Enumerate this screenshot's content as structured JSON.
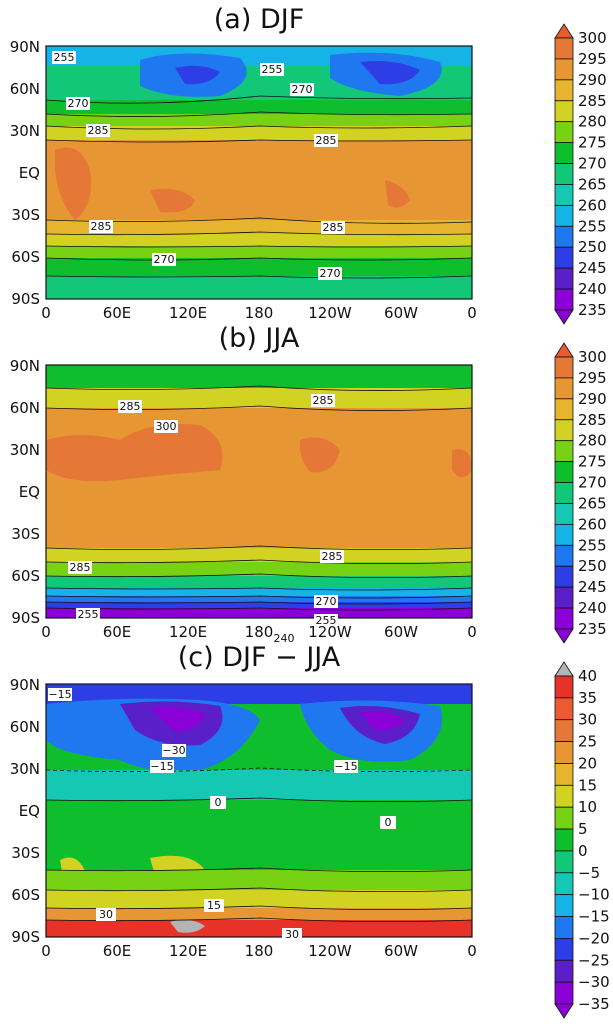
{
  "panels": [
    {
      "title": "(a) DJF",
      "lat_labels": [
        "90N",
        "60N",
        "30N",
        "EQ",
        "30S",
        "60S",
        "90S"
      ],
      "lon_labels": [
        "0",
        "60E",
        "120E",
        "180",
        "120W",
        "60W",
        "0"
      ],
      "colorbar_ticks": [
        "300",
        "295",
        "290",
        "285",
        "280",
        "275",
        "270",
        "265",
        "260",
        "255",
        "250",
        "245",
        "240",
        "235"
      ],
      "contour_labels": [
        "255",
        "270",
        "285",
        "255",
        "270",
        "285",
        "285",
        "285",
        "270",
        "270"
      ]
    },
    {
      "title": "(b) JJA",
      "lat_labels": [
        "90N",
        "60N",
        "30N",
        "EQ",
        "30S",
        "60S",
        "90S"
      ],
      "lon_labels": [
        "0",
        "60E",
        "120E",
        "180",
        "120W",
        "60W",
        "0"
      ],
      "colorbar_ticks": [
        "300",
        "295",
        "290",
        "285",
        "280",
        "275",
        "270",
        "265",
        "260",
        "255",
        "250",
        "245",
        "240",
        "235"
      ],
      "contour_labels": [
        "285",
        "300",
        "285",
        "285",
        "285",
        "270",
        "255",
        "255",
        "240"
      ]
    },
    {
      "title": "(c) DJF − JJA",
      "lat_labels": [
        "90N",
        "60N",
        "30N",
        "EQ",
        "30S",
        "60S",
        "90S"
      ],
      "lon_labels": [
        "0",
        "60E",
        "120E",
        "180",
        "120W",
        "60W",
        "0"
      ],
      "colorbar_ticks": [
        "40",
        "35",
        "30",
        "25",
        "20",
        "15",
        "10",
        "5",
        "0",
        "−5",
        "−10",
        "−15",
        "−20",
        "−25",
        "−30",
        "−35"
      ],
      "contour_labels": [
        "−15",
        "−30",
        "−15",
        "−15",
        "0",
        "0",
        "30",
        "15",
        "30"
      ]
    }
  ],
  "colors": {
    "temp_scale": [
      "#8c00d8",
      "#5a1fc8",
      "#2d3ee6",
      "#1f78f0",
      "#16b4e6",
      "#14c8b4",
      "#12c878",
      "#0fbe2d",
      "#78d214",
      "#d2d223",
      "#e6b42d",
      "#e69632",
      "#e67837",
      "#eb5a32"
    ],
    "diff_scale": [
      "#8c00d8",
      "#5a1fc8",
      "#2d3ee6",
      "#1f78f0",
      "#16b4e6",
      "#14c8b4",
      "#12c878",
      "#0fbe2d",
      "#78d214",
      "#d2d223",
      "#e6b42d",
      "#e69632",
      "#e67837",
      "#eb5a32",
      "#e63228",
      "#b4b4b4"
    ]
  }
}
